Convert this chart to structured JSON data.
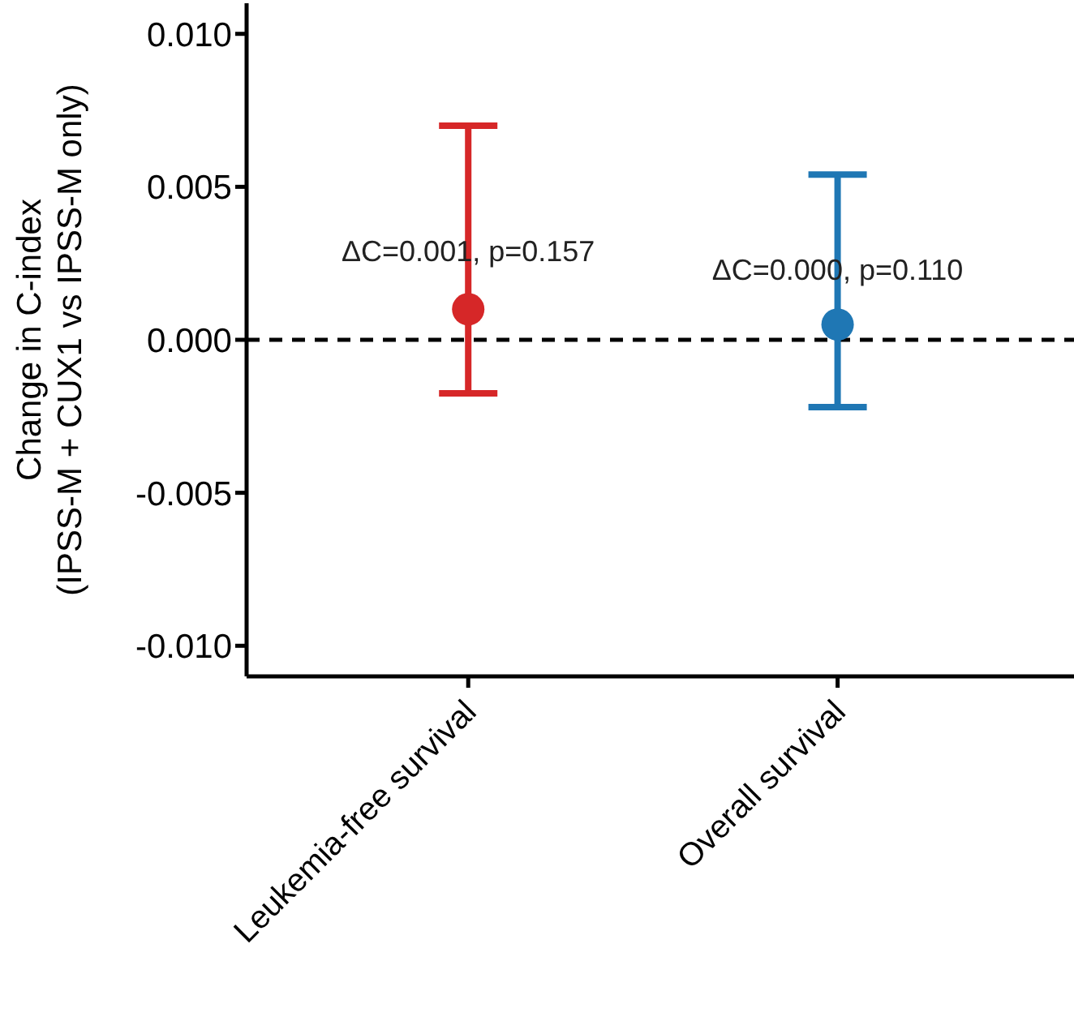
{
  "chart_data": {
    "type": "scatter",
    "ylabel": "Change in C-index\n(IPSS-M + CUX1 vs IPSS-M only)",
    "categories": [
      "Leukemia-free survival",
      "Overall survival"
    ],
    "values": [
      0.001,
      0.0005
    ],
    "colors": [
      "#d62728",
      "#1f77b4"
    ],
    "errors": [
      [
        -0.00175,
        0.007
      ],
      [
        -0.0022,
        0.0054
      ]
    ],
    "marker": "circle",
    "ylim": [
      -0.011,
      0.011
    ],
    "yticks": [
      {
        "value": -0.01,
        "label": "-0.010"
      },
      {
        "value": -0.005,
        "label": "-0.005"
      },
      {
        "value": 0,
        "label": "0.000"
      },
      {
        "value": 0.005,
        "label": "0.005"
      },
      {
        "value": 0.01,
        "label": "0.010"
      }
    ],
    "ref_lines": [
      {
        "axis": "y",
        "value": 0,
        "color": "#000000",
        "line_style": "dashed"
      }
    ],
    "annotations": [
      {
        "text": "ΔC=0.001, p=0.157",
        "x": "Leukemia-free survival",
        "y": 0.0029
      },
      {
        "text": "ΔC=0.000, p=0.110",
        "x": "Overall survival",
        "y": 0.0023
      }
    ],
    "grid": false,
    "legend": false
  }
}
